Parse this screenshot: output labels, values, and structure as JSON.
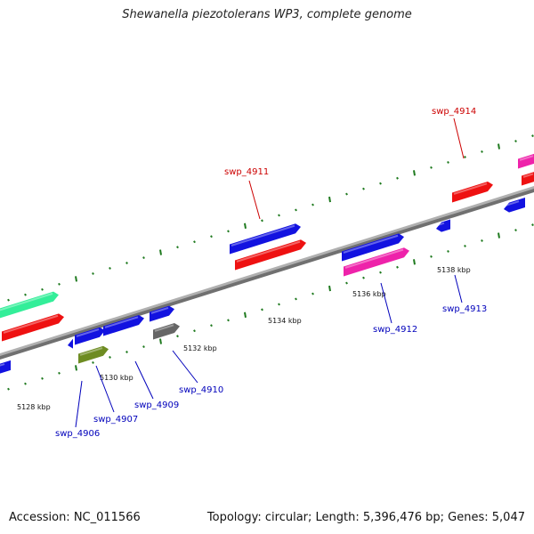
{
  "title": "Shewanella piezotolerans WP3, complete genome",
  "footer": {
    "accession": "Accession: NC_011566",
    "stats": "Topology: circular; Length: 5,396,476 bp; Genes: 5,047"
  },
  "colors": {
    "backbone": "#8a8a8a",
    "tick": "#1f7a1f",
    "blue": "#1212e0",
    "red": "#ee1111",
    "pink": "#ee22aa",
    "green": "#33ee99",
    "olive": "#6e8c22",
    "gray": "#666666",
    "label_red": "#cc0000",
    "label_blue": "#0000bb"
  },
  "ticks": [
    {
      "label": "5128 kbp"
    },
    {
      "label": "5130 kbp"
    },
    {
      "label": "5132 kbp"
    },
    {
      "label": "5134 kbp"
    },
    {
      "label": "5136 kbp"
    },
    {
      "label": "5138 kbp"
    }
  ],
  "gene_labels": [
    {
      "id": "swp_4911",
      "color": "label_red"
    },
    {
      "id": "swp_4914",
      "color": "label_red"
    },
    {
      "id": "swp_4906",
      "color": "label_blue"
    },
    {
      "id": "swp_4907",
      "color": "label_blue"
    },
    {
      "id": "swp_4909",
      "color": "label_blue"
    },
    {
      "id": "swp_4910",
      "color": "label_blue"
    },
    {
      "id": "swp_4912",
      "color": "label_blue"
    },
    {
      "id": "swp_4913",
      "color": "label_blue"
    }
  ]
}
